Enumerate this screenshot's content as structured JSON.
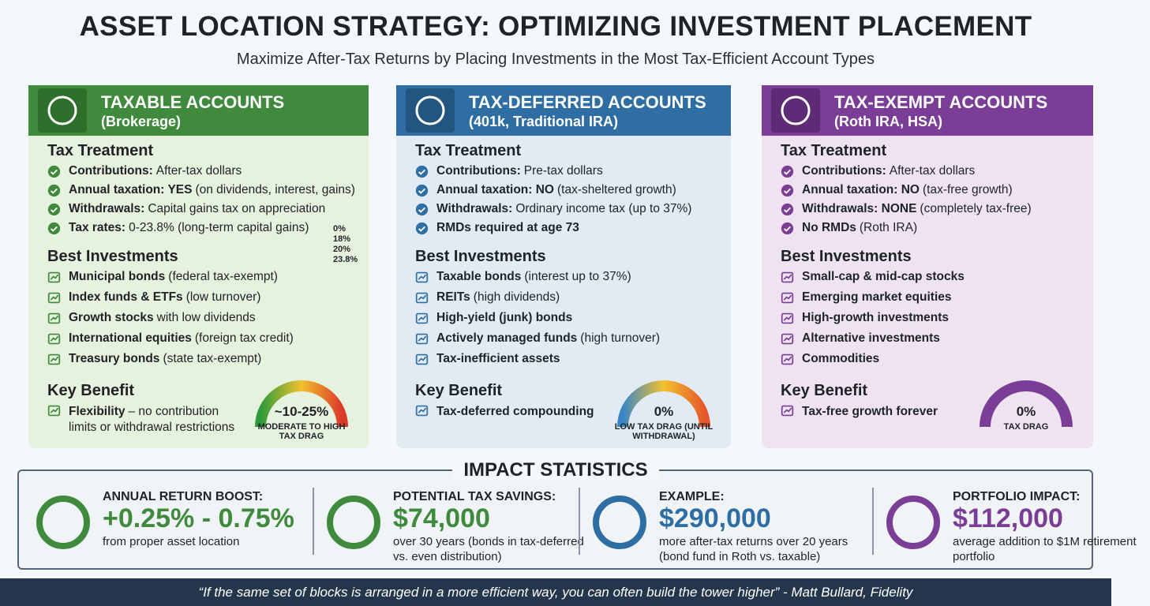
{
  "title": "ASSET LOCATION STRATEGY: OPTIMIZING INVESTMENT PLACEMENT",
  "subtitle": "Maximize After-Tax Returns by Placing Investments in the Most Tax-Efficient Account Types",
  "columns": [
    {
      "title": "TAXABLE ACCOUNTS",
      "subtitle": "(Brokerage)",
      "tax_heading": "Tax Treatment",
      "tax_items": [
        {
          "bold": "Contributions:",
          "text": "After-tax dollars"
        },
        {
          "bold": "Annual taxation: YES",
          "text": "(on dividends, interest, gains)"
        },
        {
          "bold": "Withdrawals:",
          "text": "Capital gains tax on appreciation"
        },
        {
          "bold": "Tax rates:",
          "text": "0-23.8% (long-term capital gains)"
        }
      ],
      "brackets": [
        "0%",
        "18%",
        "20%",
        "23.8%"
      ],
      "best_heading": "Best Investments",
      "investments": [
        {
          "bold": "Municipal bonds",
          "text": "(federal tax-exempt)"
        },
        {
          "bold": "Index funds & ETFs",
          "text": "(low turnover)"
        },
        {
          "bold": "Growth stocks",
          "text": "with low dividends"
        },
        {
          "bold": "International equities",
          "text": "(foreign tax credit)"
        },
        {
          "bold": "Treasury bonds",
          "text": "(state tax-exempt)"
        }
      ],
      "benefit_heading": "Key Benefit",
      "benefit": {
        "bold": "Flexibility",
        "text": "– no contribution limits or withdrawal restrictions"
      },
      "gauge": {
        "value": "~10-25%",
        "label": "MODERATE TO HIGH TAX DRAG"
      }
    },
    {
      "title": "TAX-DEFERRED ACCOUNTS",
      "subtitle": "(401k, Traditional IRA)",
      "tax_heading": "Tax Treatment",
      "tax_items": [
        {
          "bold": "Contributions:",
          "text": "Pre-tax dollars"
        },
        {
          "bold": "Annual taxation: NO",
          "text": "(tax-sheltered growth)"
        },
        {
          "bold": "Withdrawals:",
          "text": "Ordinary income tax (up to 37%)"
        },
        {
          "bold": "RMDs required at age 73"
        }
      ],
      "best_heading": "Best Investments",
      "investments": [
        {
          "bold": "Taxable bonds",
          "text": "(interest up to 37%)"
        },
        {
          "bold": "REITs",
          "text": "(high dividends)"
        },
        {
          "bold": "High-yield (junk) bonds"
        },
        {
          "bold": "Actively managed funds",
          "text": "(high turnover)"
        },
        {
          "bold": "Tax-inefficient assets"
        }
      ],
      "benefit_heading": "Key Benefit",
      "benefit": {
        "bold": "Tax-deferred compounding"
      },
      "gauge": {
        "value": "0%",
        "label": "LOW TAX DRAG (UNTIL WITHDRAWAL)"
      }
    },
    {
      "title": "TAX-EXEMPT ACCOUNTS",
      "subtitle": "(Roth IRA, HSA)",
      "tax_heading": "Tax Treatment",
      "tax_items": [
        {
          "bold": "Contributions:",
          "text": "After-tax dollars"
        },
        {
          "bold": "Annual taxation: NO",
          "text": "(tax-free growth)"
        },
        {
          "bold": "Withdrawals: NONE",
          "text": "(completely tax-free)"
        },
        {
          "bold": "No RMDs",
          "text": "(Roth IRA)"
        }
      ],
      "best_heading": "Best Investments",
      "investments": [
        {
          "bold": "Small-cap & mid-cap stocks"
        },
        {
          "bold": "Emerging market equities"
        },
        {
          "bold": "High-growth investments"
        },
        {
          "bold": "Alternative investments"
        },
        {
          "bold": "Commodities"
        }
      ],
      "benefit_heading": "Key Benefit",
      "benefit": {
        "bold": "Tax-free growth forever"
      },
      "gauge": {
        "value": "0%",
        "label": "TAX DRAG"
      }
    }
  ],
  "impact": {
    "heading": "IMPACT STATISTICS",
    "items": [
      {
        "title": "ANNUAL RETURN BOOST:",
        "value": "+0.25% - 0.75%",
        "text": "from proper asset location"
      },
      {
        "title": "POTENTIAL TAX SAVINGS:",
        "value": "$74,000",
        "text": "over 30 years (bonds in tax-deferred vs. even distribution)"
      },
      {
        "title": "EXAMPLE:",
        "value": "$290,000",
        "text": "more after-tax returns over 20 years (bond fund in Roth vs. taxable)"
      },
      {
        "title": "PORTFOLIO IMPACT:",
        "value": "$112,000",
        "text": "average addition to $1M retirement portfolio"
      }
    ]
  },
  "quote": "“If the same set of blocks is arranged in a more efficient way, you can often build the tower higher” - Matt Bullard, Fidelity"
}
